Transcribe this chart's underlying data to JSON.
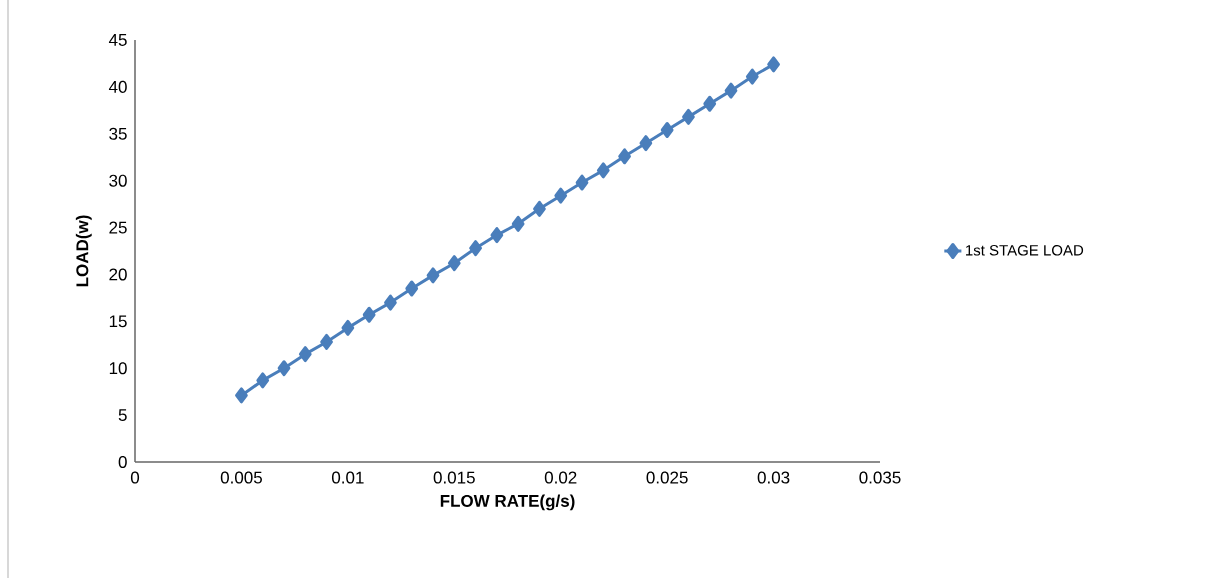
{
  "chart_data": {
    "type": "line",
    "xlabel": "FLOW RATE(g/s)",
    "ylabel": "LOAD(w)",
    "x": [
      0.005,
      0.006,
      0.007,
      0.008,
      0.009,
      0.01,
      0.011,
      0.012,
      0.013,
      0.014,
      0.015,
      0.016,
      0.017,
      0.018,
      0.019,
      0.02,
      0.021,
      0.022,
      0.023,
      0.024,
      0.025,
      0.026,
      0.027,
      0.028,
      0.029,
      0.03
    ],
    "series": [
      {
        "name": "1st STAGE LOAD",
        "color": "#4a7ebb",
        "values": [
          7.1,
          8.7,
          10.0,
          11.5,
          12.8,
          14.3,
          15.7,
          17.0,
          18.5,
          19.9,
          21.2,
          22.8,
          24.2,
          25.4,
          27.0,
          28.4,
          29.8,
          31.1,
          32.6,
          34.0,
          35.4,
          36.8,
          38.2,
          39.6,
          41.1,
          42.4
        ]
      }
    ],
    "xlim": [
      0,
      0.035
    ],
    "xticks": [
      0,
      0.005,
      0.01,
      0.015,
      0.02,
      0.025,
      0.03,
      0.035
    ],
    "ylim": [
      0,
      45
    ],
    "yticks": [
      0,
      5,
      10,
      15,
      20,
      25,
      30,
      35,
      40,
      45
    ],
    "marker": "diamond",
    "line_style": "solid",
    "legend": "right",
    "grid": false
  }
}
